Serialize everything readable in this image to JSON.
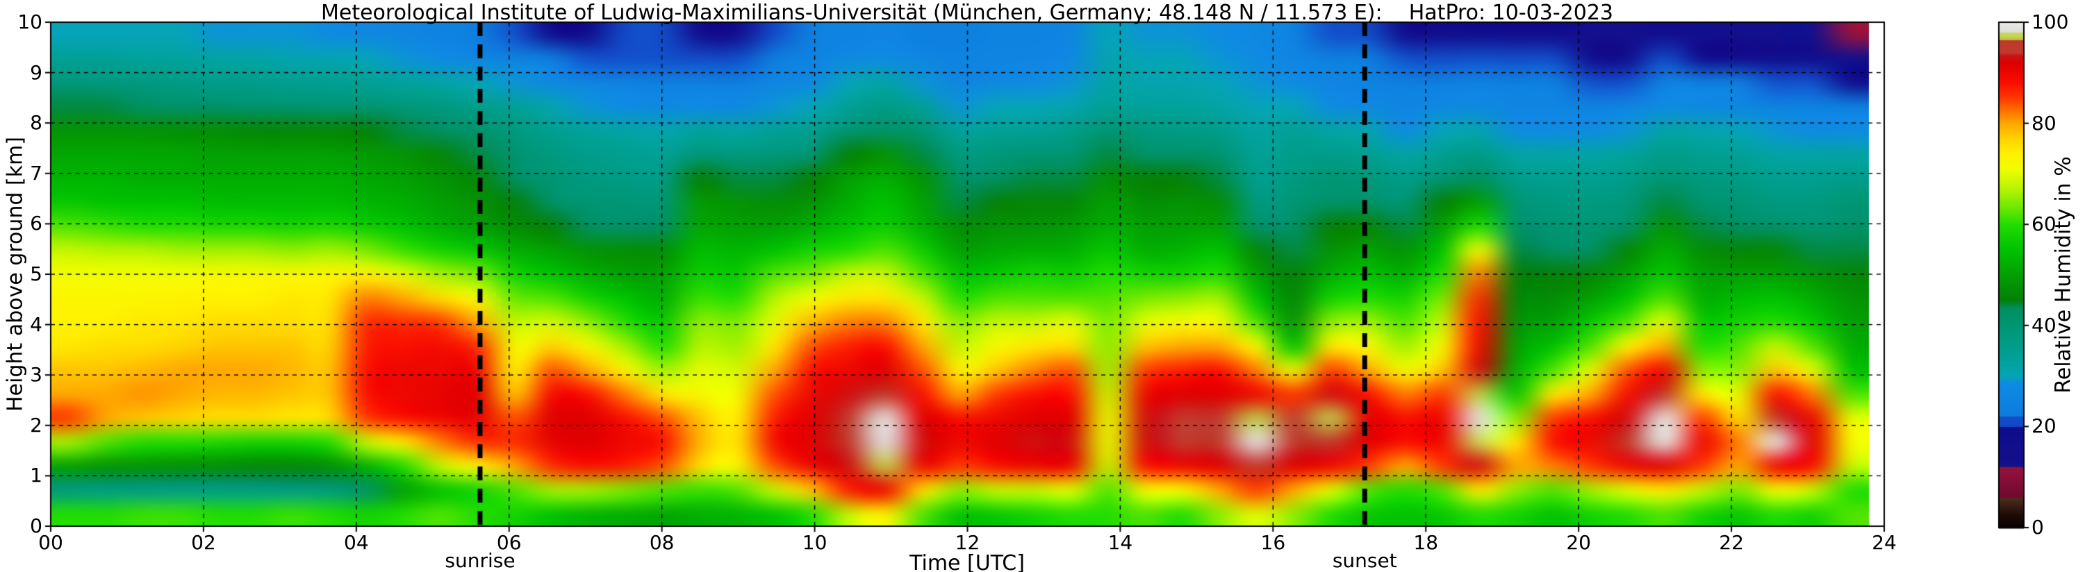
{
  "title": "Meteorological Institute of Ludwig-Maximilians-Universität (München, Germany; 48.148 N / 11.573 E):    HatPro: 10-03-2023",
  "chart_data": {
    "type": "heatmap",
    "title": "Meteorological Institute of Ludwig-Maximilians-Universität (München, Germany; 48.148 N / 11.573 E):    HatPro: 10-03-2023",
    "xlabel": "Time [UTC]",
    "ylabel": "Height above ground [km]",
    "xlim": [
      0,
      24
    ],
    "ylim": [
      0,
      10
    ],
    "x_tick_values": [
      0,
      2,
      4,
      6,
      8,
      10,
      12,
      14,
      16,
      18,
      20,
      22,
      24
    ],
    "x_tick_labels": [
      "00",
      "02",
      "04",
      "06",
      "08",
      "10",
      "12",
      "14",
      "16",
      "18",
      "20",
      "22",
      "24"
    ],
    "y_tick_values": [
      0,
      1,
      2,
      3,
      4,
      5,
      6,
      7,
      8,
      9,
      10
    ],
    "y_tick_labels": [
      "0",
      "1",
      "2",
      "3",
      "4",
      "5",
      "6",
      "7",
      "8",
      "9",
      "10"
    ],
    "grid": "dashed black lines every 2 h and every 1 km",
    "legend_position": "right colorbar",
    "data_end_hour_utc": 23.8,
    "annotations": [
      {
        "label": "sunrise",
        "time_utc": 5.62,
        "style": "thick dashed vertical black line"
      },
      {
        "label": "sunset",
        "time_utc": 17.2,
        "style": "thick dashed vertical black line"
      }
    ],
    "colorbar": {
      "label": "Relative Humidity in %",
      "tick_values": [
        0,
        20,
        40,
        60,
        80,
        100
      ],
      "tick_labels": [
        "0",
        "20",
        "40",
        "60",
        "80",
        "100"
      ],
      "range": [
        0,
        100
      ]
    },
    "colormap_stops": [
      [
        0,
        "#0a0202"
      ],
      [
        2.5,
        "#1e0b06"
      ],
      [
        5.5,
        "#4a2a1c"
      ],
      [
        6,
        "#502d1e"
      ],
      [
        6.001,
        "#70092e"
      ],
      [
        12,
        "#97123f"
      ],
      [
        12.001,
        "#1b157e"
      ],
      [
        13,
        "#14108c"
      ],
      [
        20,
        "#100d8e"
      ],
      [
        20.001,
        "#1246c4"
      ],
      [
        22,
        "#1250cb"
      ],
      [
        22.001,
        "#0e7bdd"
      ],
      [
        28.5,
        "#0f8ce4"
      ],
      [
        30,
        "#05a4b8"
      ],
      [
        33,
        "#02a29c"
      ],
      [
        38,
        "#009a80"
      ],
      [
        43.5,
        "#008f60"
      ],
      [
        45,
        "#058008"
      ],
      [
        50,
        "#03a003"
      ],
      [
        55,
        "#00c300"
      ],
      [
        60,
        "#22dd00"
      ],
      [
        63,
        "#67e800"
      ],
      [
        67,
        "#b6f400"
      ],
      [
        71,
        "#f2fd00"
      ],
      [
        74,
        "#fff200"
      ],
      [
        77,
        "#ffd400"
      ],
      [
        80,
        "#ffa800"
      ],
      [
        82,
        "#ff7e00"
      ],
      [
        85,
        "#ff3a00"
      ],
      [
        88,
        "#fa0f00"
      ],
      [
        92,
        "#e00000"
      ],
      [
        93.5,
        "#c81616"
      ],
      [
        94,
        "#c23b2e"
      ],
      [
        96.5,
        "#bf392c"
      ],
      [
        96.501,
        "#b4bc3e"
      ],
      [
        97.2,
        "#c8d44d"
      ],
      [
        98,
        "#cbd75a"
      ],
      [
        98.001,
        "#dcdcd8"
      ],
      [
        100,
        "#ebebe7"
      ]
    ],
    "x_hours_utc": [
      0,
      0.5,
      1,
      1.5,
      2,
      2.5,
      3,
      3.5,
      4,
      4.5,
      5,
      5.5,
      6,
      6.5,
      7,
      7.5,
      8,
      8.5,
      9,
      9.5,
      10,
      10.5,
      11,
      11.5,
      12,
      12.5,
      13,
      13.5,
      14,
      14.5,
      15,
      15.5,
      16,
      16.5,
      17,
      17.5,
      18,
      18.5,
      19,
      19.5,
      20,
      20.5,
      21,
      21.5,
      22,
      22.5,
      23,
      23.5,
      23.8
    ],
    "y_km": [
      0,
      0.5,
      1,
      1.5,
      2,
      2.5,
      3,
      3.5,
      4,
      4.5,
      5,
      5.5,
      6,
      6.5,
      7,
      7.5,
      8,
      8.5,
      9,
      9.5,
      10
    ],
    "values_rh_percent": [
      [
        60,
        38,
        50,
        66,
        85,
        80,
        78,
        75,
        74,
        73,
        71,
        68,
        62,
        56,
        53,
        51,
        48,
        44,
        39,
        34,
        30
      ],
      [
        60,
        37,
        48,
        62,
        80,
        80,
        78,
        76,
        74,
        73,
        71,
        67,
        61,
        55,
        53,
        51,
        48,
        44,
        38,
        34,
        30
      ],
      [
        61,
        37,
        48,
        60,
        78,
        81,
        79,
        76,
        75,
        73,
        71,
        67,
        60,
        55,
        52,
        51,
        48,
        43,
        38,
        33,
        30
      ],
      [
        61,
        36,
        47,
        60,
        77,
        80,
        80,
        77,
        75,
        74,
        71,
        66,
        60,
        55,
        52,
        51,
        47,
        42,
        37,
        33,
        30
      ],
      [
        60,
        36,
        47,
        59,
        76,
        79,
        80,
        78,
        76,
        74,
        72,
        66,
        59,
        54,
        52,
        50,
        47,
        42,
        36,
        32,
        29
      ],
      [
        60,
        36,
        46,
        58,
        76,
        79,
        80,
        78,
        76,
        74,
        72,
        66,
        59,
        54,
        52,
        50,
        46,
        41,
        36,
        32,
        29
      ],
      [
        61,
        37,
        46,
        58,
        75,
        78,
        79,
        78,
        76,
        75,
        72,
        65,
        58,
        54,
        52,
        50,
        46,
        41,
        35,
        31,
        29
      ],
      [
        60,
        38,
        47,
        60,
        76,
        78,
        78,
        77,
        76,
        75,
        73,
        66,
        59,
        54,
        52,
        50,
        46,
        40,
        35,
        31,
        28
      ],
      [
        58,
        42,
        52,
        68,
        85,
        88,
        88,
        87,
        86,
        82,
        74,
        64,
        57,
        53,
        51,
        49,
        45,
        40,
        34,
        30,
        27
      ],
      [
        60,
        50,
        60,
        75,
        88,
        90,
        90,
        88,
        86,
        80,
        70,
        61,
        55,
        52,
        50,
        48,
        44,
        39,
        33,
        29,
        26
      ],
      [
        62,
        55,
        68,
        82,
        90,
        91,
        90,
        89,
        85,
        76,
        66,
        58,
        52,
        50,
        48,
        46,
        43,
        38,
        32,
        28,
        25
      ],
      [
        60,
        58,
        74,
        86,
        91,
        92,
        90,
        86,
        80,
        72,
        64,
        56,
        50,
        48,
        46,
        44,
        41,
        36,
        30,
        26,
        23
      ],
      [
        58,
        62,
        80,
        86,
        84,
        78,
        74,
        71,
        68,
        63,
        58,
        52,
        47,
        45,
        43,
        41,
        38,
        34,
        29,
        25,
        22
      ],
      [
        55,
        66,
        86,
        91,
        92,
        89,
        84,
        77,
        69,
        62,
        55,
        50,
        45,
        42,
        40,
        38,
        35,
        31,
        27,
        23,
        20
      ],
      [
        53,
        66,
        88,
        92,
        92,
        88,
        80,
        72,
        65,
        58,
        52,
        48,
        43,
        40,
        38,
        36,
        33,
        29,
        26,
        22,
        20
      ],
      [
        52,
        64,
        87,
        90,
        88,
        82,
        73,
        66,
        60,
        55,
        50,
        47,
        42,
        40,
        37,
        35,
        32,
        28,
        25,
        22,
        21
      ],
      [
        51,
        62,
        84,
        88,
        84,
        75,
        66,
        60,
        56,
        52,
        50,
        47,
        43,
        40,
        37,
        34,
        31,
        27,
        24,
        22,
        21
      ],
      [
        52,
        61,
        76,
        79,
        78,
        72,
        70,
        67,
        65,
        61,
        57,
        54,
        51,
        49,
        45,
        39,
        33,
        28,
        24,
        21,
        19
      ],
      [
        53,
        62,
        72,
        75,
        74,
        71,
        69,
        66,
        64,
        60,
        56,
        53,
        50,
        48,
        44,
        38,
        32,
        27,
        24,
        21,
        19
      ],
      [
        55,
        68,
        84,
        89,
        87,
        84,
        80,
        75,
        70,
        67,
        62,
        55,
        50,
        47,
        44,
        39,
        34,
        29,
        26,
        23,
        21
      ],
      [
        60,
        78,
        90,
        92,
        92,
        90,
        88,
        84,
        79,
        71,
        64,
        58,
        52,
        48,
        45,
        40,
        35,
        30,
        27,
        25,
        24
      ],
      [
        68,
        87,
        93,
        95,
        95,
        93,
        90,
        87,
        82,
        75,
        68,
        60,
        55,
        52,
        50,
        45,
        40,
        34,
        30,
        27,
        25
      ],
      [
        74,
        90,
        97,
        99,
        99,
        95,
        92,
        88,
        82,
        75,
        68,
        62,
        57,
        55,
        52,
        48,
        42,
        37,
        32,
        28,
        26
      ],
      [
        62,
        76,
        90,
        93,
        92,
        88,
        84,
        80,
        75,
        68,
        62,
        57,
        52,
        50,
        48,
        44,
        40,
        34,
        29,
        26,
        24
      ],
      [
        55,
        65,
        85,
        90,
        88,
        80,
        73,
        68,
        65,
        60,
        55,
        50,
        47,
        44,
        42,
        38,
        33,
        29,
        26,
        25,
        24
      ],
      [
        56,
        68,
        88,
        92,
        90,
        85,
        78,
        72,
        68,
        62,
        56,
        51,
        48,
        45,
        43,
        39,
        34,
        30,
        27,
        26,
        25
      ],
      [
        58,
        68,
        90,
        93,
        92,
        88,
        82,
        75,
        68,
        62,
        58,
        52,
        48,
        46,
        44,
        40,
        34,
        30,
        28,
        26,
        25
      ],
      [
        60,
        70,
        90,
        93,
        92,
        88,
        84,
        76,
        70,
        62,
        57,
        52,
        49,
        46,
        44,
        40,
        36,
        31,
        29,
        27,
        26
      ],
      [
        60,
        62,
        68,
        70,
        70,
        68,
        66,
        65,
        64,
        62,
        60,
        56,
        52,
        50,
        47,
        44,
        40,
        34,
        32,
        31,
        30
      ],
      [
        62,
        72,
        88,
        93,
        93,
        90,
        85,
        78,
        70,
        64,
        58,
        52,
        50,
        47,
        45,
        42,
        38,
        33,
        31,
        30,
        29
      ],
      [
        60,
        72,
        90,
        94,
        94,
        92,
        87,
        80,
        72,
        65,
        58,
        53,
        50,
        48,
        45,
        42,
        37,
        33,
        31,
        30,
        29
      ],
      [
        65,
        80,
        92,
        95,
        95,
        92,
        88,
        80,
        72,
        66,
        60,
        55,
        50,
        47,
        44,
        41,
        36,
        32,
        30,
        29,
        28
      ],
      [
        70,
        85,
        95,
        99,
        97,
        90,
        82,
        72,
        62,
        55,
        50,
        46,
        42,
        38,
        35,
        34,
        32,
        30,
        29,
        28,
        27
      ],
      [
        65,
        80,
        92,
        96,
        95,
        85,
        70,
        55,
        48,
        46,
        45,
        44,
        42,
        40,
        38,
        36,
        34,
        30,
        28,
        26,
        25
      ],
      [
        60,
        70,
        90,
        96,
        97,
        93,
        85,
        75,
        65,
        58,
        52,
        48,
        45,
        42,
        40,
        36,
        32,
        28,
        26,
        24,
        22
      ],
      [
        56,
        62,
        85,
        92,
        92,
        88,
        80,
        72,
        66,
        60,
        55,
        50,
        46,
        42,
        39,
        35,
        31,
        27,
        25,
        23,
        21
      ],
      [
        55,
        60,
        80,
        88,
        88,
        82,
        72,
        66,
        62,
        58,
        52,
        48,
        44,
        40,
        36,
        32,
        28,
        26,
        24,
        22,
        20
      ],
      [
        56,
        62,
        85,
        90,
        90,
        85,
        78,
        72,
        68,
        64,
        60,
        55,
        50,
        45,
        40,
        35,
        30,
        27,
        24,
        21,
        18
      ],
      [
        60,
        75,
        93,
        98,
        99,
        97,
        93,
        90,
        88,
        86,
        82,
        72,
        60,
        50,
        43,
        37,
        31,
        27,
        25,
        22,
        20
      ],
      [
        58,
        65,
        80,
        75,
        65,
        56,
        52,
        50,
        48,
        46,
        45,
        44,
        42,
        40,
        36,
        32,
        28,
        26,
        24,
        21,
        19
      ],
      [
        55,
        62,
        82,
        88,
        85,
        75,
        62,
        55,
        50,
        47,
        45,
        43,
        40,
        38,
        35,
        32,
        28,
        26,
        24,
        21,
        19
      ],
      [
        58,
        66,
        85,
        90,
        88,
        80,
        70,
        62,
        56,
        50,
        46,
        43,
        40,
        38,
        35,
        32,
        28,
        25,
        22,
        18,
        15
      ],
      [
        60,
        70,
        90,
        94,
        93,
        89,
        84,
        74,
        62,
        55,
        50,
        46,
        42,
        39,
        36,
        33,
        29,
        26,
        22,
        18,
        15
      ],
      [
        62,
        75,
        92,
        99,
        99,
        95,
        90,
        80,
        70,
        62,
        56,
        52,
        48,
        44,
        40,
        36,
        32,
        28,
        25,
        21,
        17
      ],
      [
        58,
        68,
        85,
        90,
        85,
        75,
        65,
        60,
        56,
        52,
        50,
        47,
        44,
        41,
        38,
        35,
        31,
        27,
        24,
        20,
        16
      ],
      [
        56,
        64,
        80,
        82,
        76,
        70,
        65,
        62,
        58,
        54,
        50,
        46,
        43,
        40,
        37,
        34,
        30,
        26,
        23,
        19,
        15
      ],
      [
        60,
        72,
        90,
        99,
        96,
        88,
        78,
        68,
        60,
        55,
        50,
        46,
        42,
        38,
        35,
        32,
        29,
        25,
        22,
        18,
        15
      ],
      [
        58,
        68,
        88,
        92,
        90,
        82,
        70,
        62,
        56,
        52,
        48,
        44,
        40,
        38,
        35,
        32,
        28,
        25,
        22,
        17,
        13
      ],
      [
        62,
        60,
        68,
        72,
        70,
        62,
        55,
        52,
        50,
        48,
        46,
        44,
        42,
        40,
        36,
        32,
        28,
        24,
        20,
        15,
        12
      ]
    ]
  }
}
